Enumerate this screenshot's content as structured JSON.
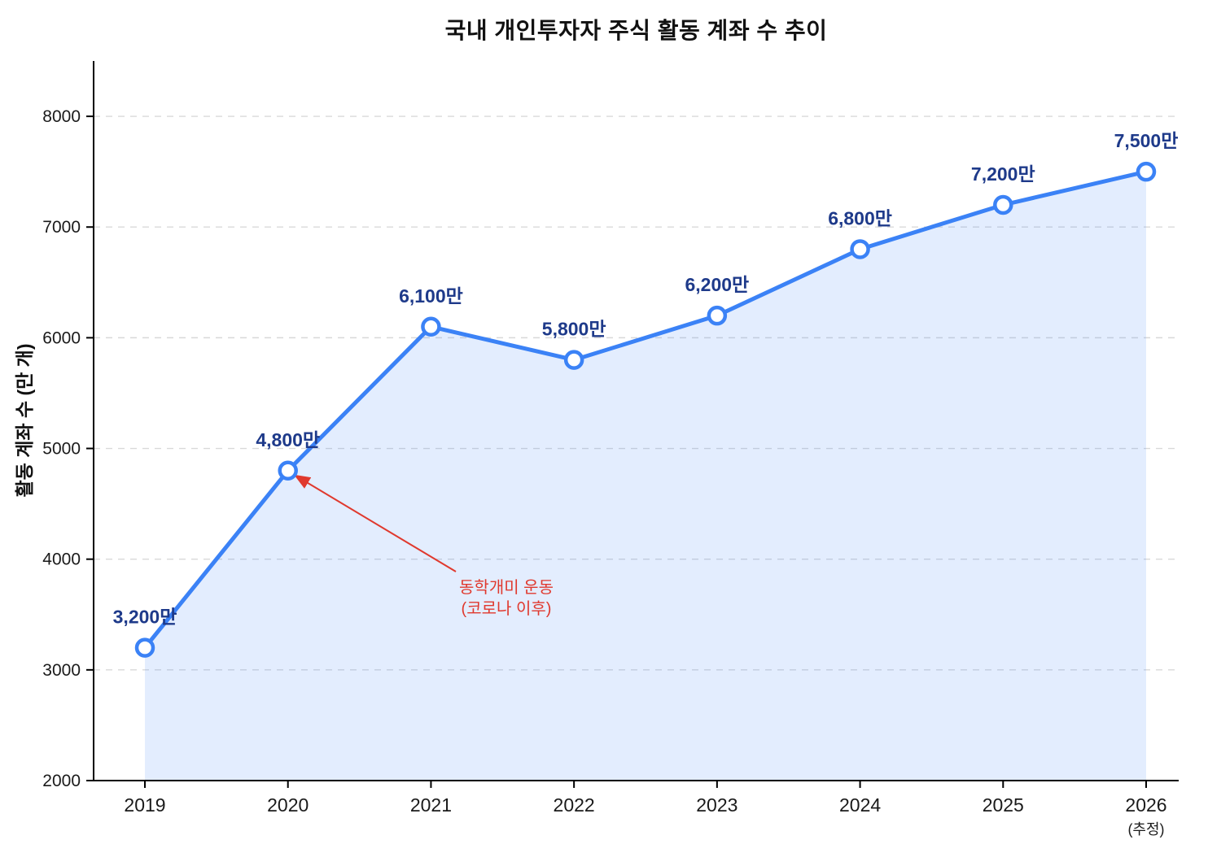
{
  "chart_data": {
    "type": "line",
    "title": "국내 개인투자자 주식 활동 계좌 수 추이",
    "xlabel": "",
    "ylabel": "활동 계좌 수 (만 개)",
    "x": [
      "2019",
      "2020",
      "2021",
      "2022",
      "2023",
      "2024",
      "2025",
      "2026"
    ],
    "x_note_last": "(추정)",
    "values": [
      3200,
      4800,
      6100,
      5800,
      6200,
      6800,
      7200,
      7500
    ],
    "point_labels": [
      "3,200만",
      "4,800만",
      "6,100만",
      "5,800만",
      "6,200만",
      "6,800만",
      "7,200만",
      "7,500만"
    ],
    "ylim": [
      2000,
      8500
    ],
    "yticks": [
      2000,
      3000,
      4000,
      5000,
      6000,
      7000,
      8000
    ],
    "grid": true,
    "legend": false,
    "area_fill_on": true,
    "annotation": {
      "line1": "동학개미 운동",
      "line2": "(코로나 이후)",
      "target_index": 1
    },
    "colors": {
      "line": "#3b82f6",
      "marker_fill": "#ffffff",
      "area_fill": "rgba(59,130,246,0.14)",
      "point_label": "#1e3a8a",
      "annotation": "#e0392e",
      "grid": "#d9d9d9",
      "axis": "#000000",
      "tick_label": "#1a1a1a"
    }
  }
}
